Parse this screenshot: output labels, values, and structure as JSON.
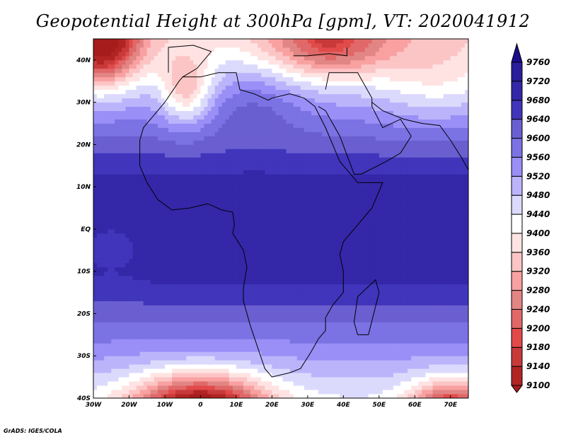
{
  "title": "Geopotential Height at 300hPa [gpm], VT: 2020041912",
  "credit": "GrADS: IGES/COLA",
  "map": {
    "lon_range": [
      -30,
      75
    ],
    "lat_range": [
      -40,
      45
    ],
    "lon_ticks": [
      {
        "v": -30,
        "label": "30W"
      },
      {
        "v": -20,
        "label": "20W"
      },
      {
        "v": -10,
        "label": "10W"
      },
      {
        "v": 0,
        "label": "0"
      },
      {
        "v": 10,
        "label": "10E"
      },
      {
        "v": 20,
        "label": "20E"
      },
      {
        "v": 30,
        "label": "30E"
      },
      {
        "v": 40,
        "label": "40E"
      },
      {
        "v": 50,
        "label": "50E"
      },
      {
        "v": 60,
        "label": "60E"
      },
      {
        "v": 70,
        "label": "70E"
      }
    ],
    "lat_ticks": [
      {
        "v": 40,
        "label": "40N"
      },
      {
        "v": 30,
        "label": "30N"
      },
      {
        "v": 20,
        "label": "20N"
      },
      {
        "v": 10,
        "label": "10N"
      },
      {
        "v": 0,
        "label": "EQ"
      },
      {
        "v": -10,
        "label": "10S"
      },
      {
        "v": -20,
        "label": "20S"
      },
      {
        "v": -30,
        "label": "30S"
      },
      {
        "v": -40,
        "label": "40S"
      }
    ]
  },
  "colorbar": {
    "levels": [
      "9100",
      "9140",
      "9180",
      "9200",
      "9240",
      "9280",
      "9320",
      "9360",
      "9400",
      "9440",
      "9480",
      "9520",
      "9560",
      "9600",
      "9640",
      "9680",
      "9720",
      "9760"
    ],
    "colors": [
      "#a61c1c",
      "#b22424",
      "#c83a3a",
      "#e24a4a",
      "#e06868",
      "#e28585",
      "#f9a1a1",
      "#fcc5c5",
      "#ffe3e3",
      "#ffffff",
      "#dcdafc",
      "#bcb4fb",
      "#9a8ff7",
      "#7b72e4",
      "#6a5fd0",
      "#4035bb",
      "#3427a8",
      "#2a1e9a",
      "#1a0e8c"
    ]
  }
}
